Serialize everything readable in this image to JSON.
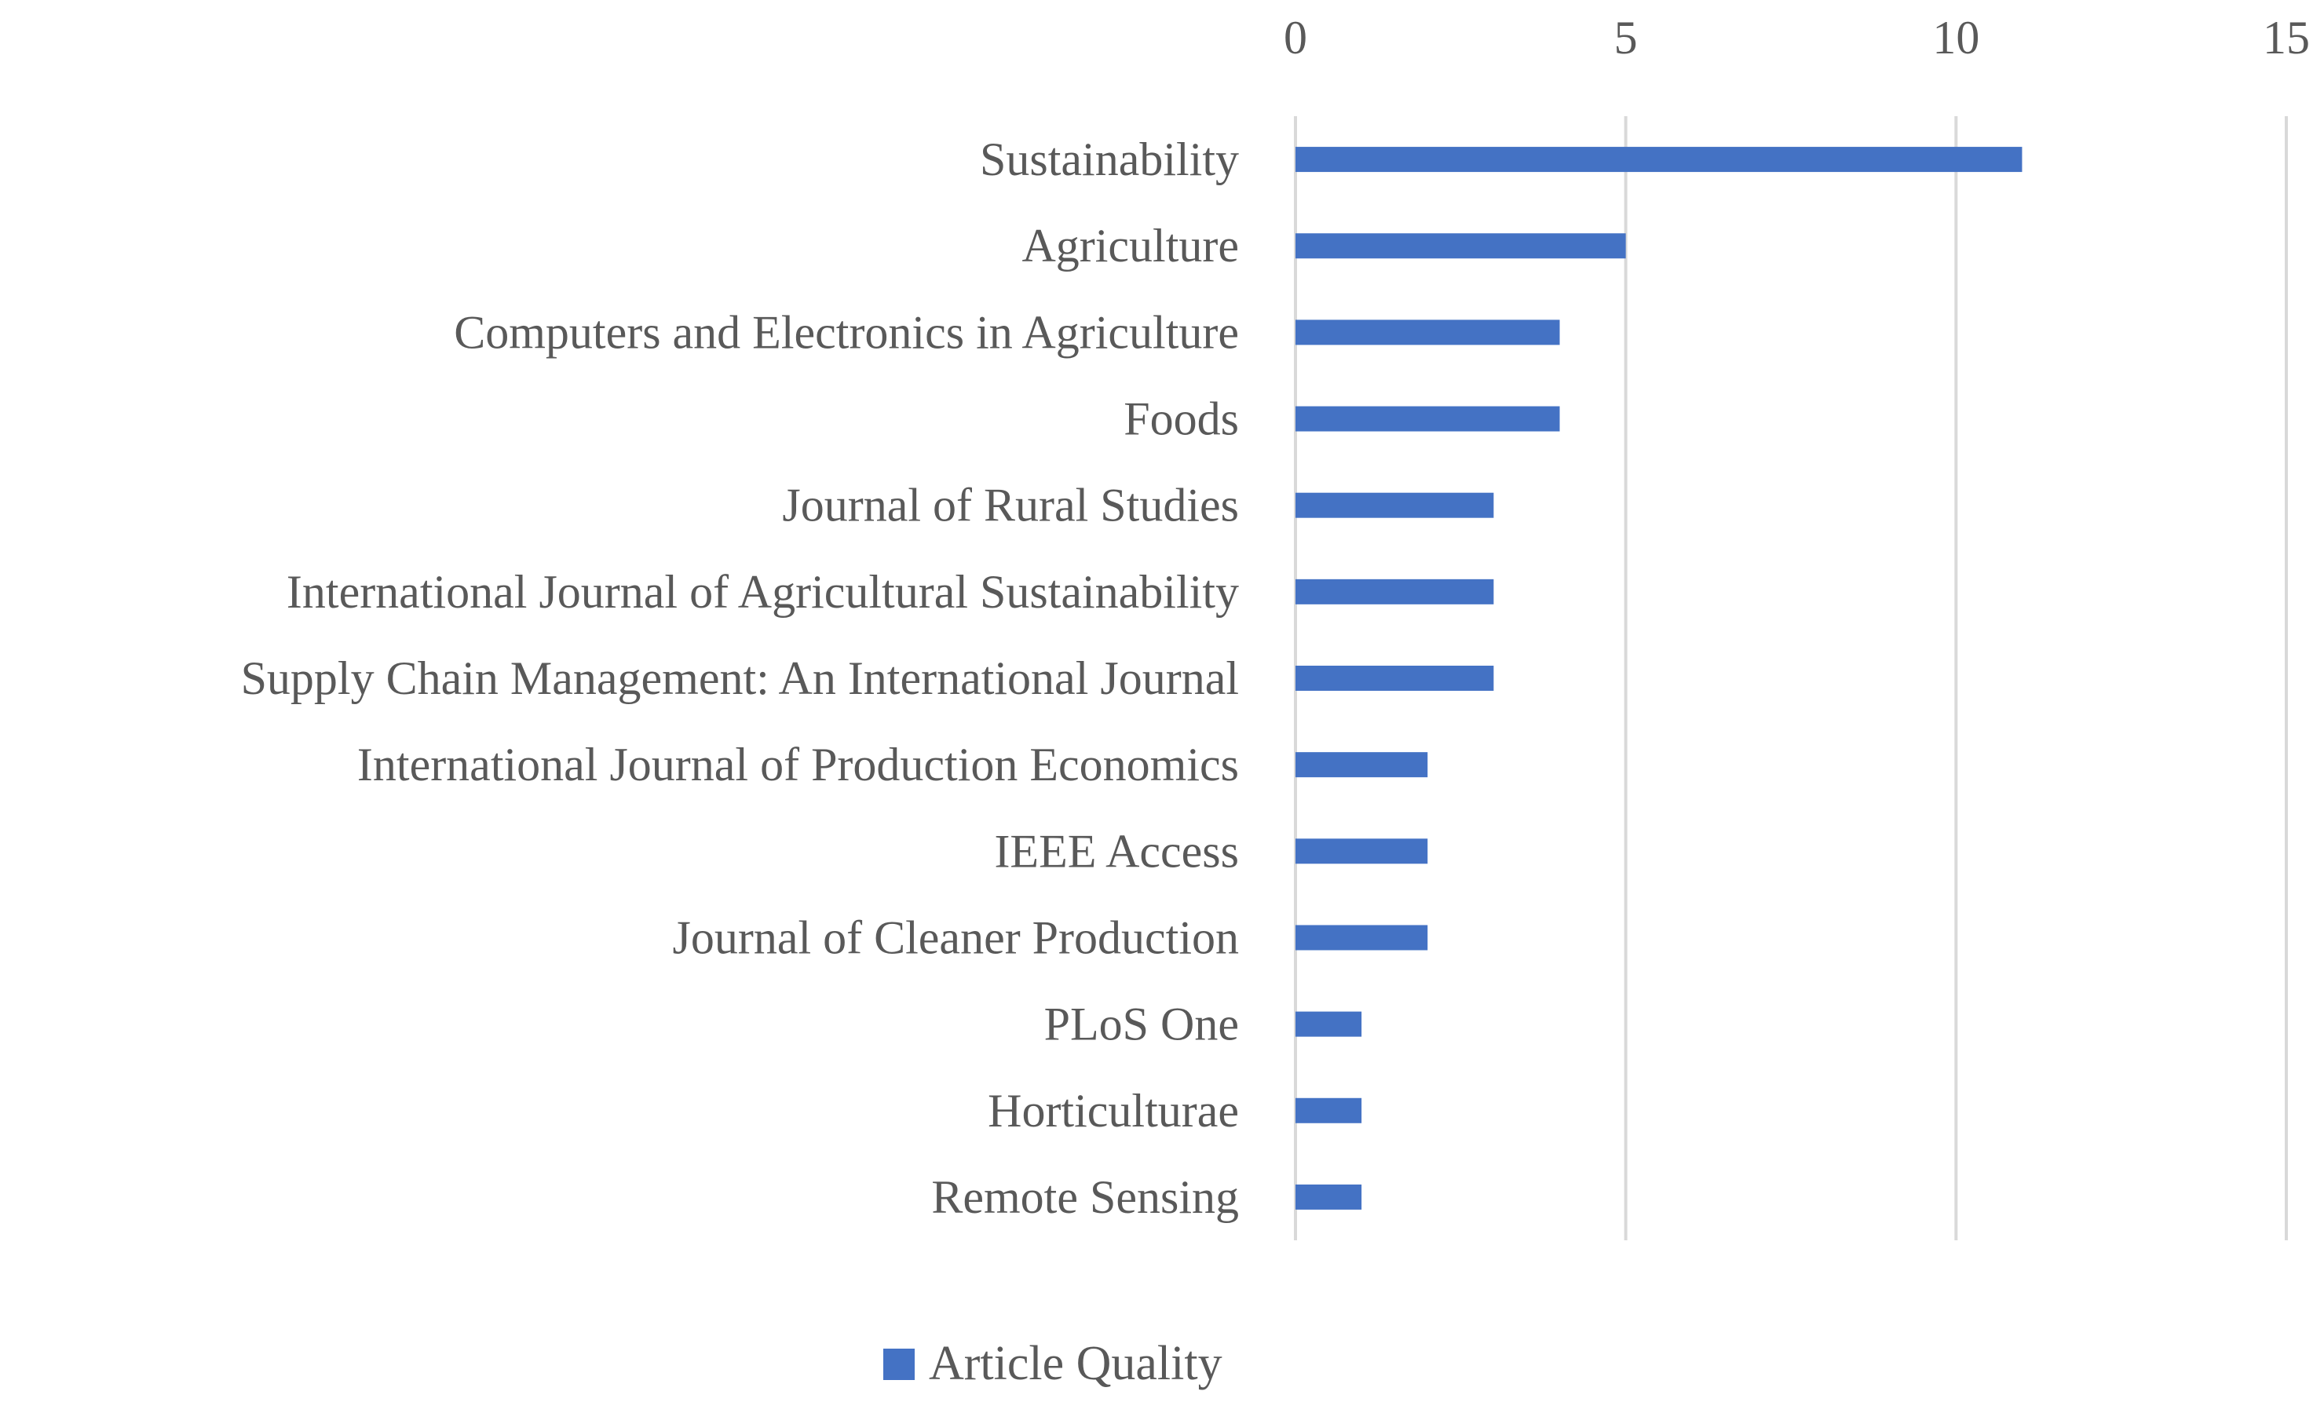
{
  "chart_data": {
    "type": "bar",
    "orientation": "horizontal",
    "categories": [
      "Sustainability",
      "Agriculture",
      "Computers and Electronics in Agriculture",
      "Foods",
      "Journal of Rural Studies",
      "International Journal of Agricultural Sustainability",
      "Supply Chain Management: An International Journal",
      "International Journal of Production Economics",
      "IEEE Access",
      "Journal of Cleaner Production",
      "PLoS One",
      "Horticulturae",
      "Remote Sensing"
    ],
    "series": [
      {
        "name": "Article Quality",
        "values": [
          11,
          5,
          4,
          4,
          3,
          3,
          3,
          2,
          2,
          2,
          1,
          1,
          1
        ],
        "color": "#4472C4"
      }
    ],
    "xlim": [
      0,
      15
    ],
    "xticks": [
      0,
      5,
      10,
      15
    ],
    "x_axis_position": "top",
    "grid": true,
    "gridline_color": "#D9D9D9",
    "text_color": "#595959",
    "legend_position": "bottom"
  }
}
